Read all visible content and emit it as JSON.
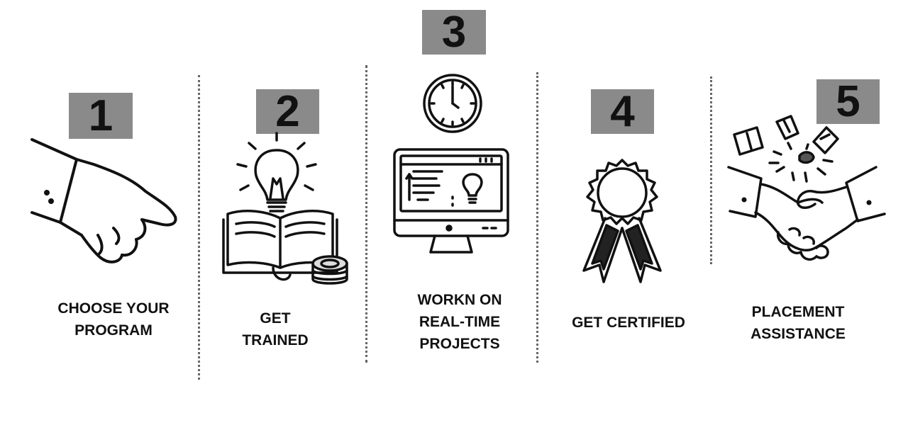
{
  "steps": [
    {
      "number": "1",
      "label_lines": [
        "CHOOSE YOUR",
        "PROGRAM"
      ],
      "icon": "pointing-hand-icon"
    },
    {
      "number": "2",
      "label_lines": [
        "GET",
        "TRAINED"
      ],
      "icon": "book-lightbulb-icon"
    },
    {
      "number": "3",
      "label_lines": [
        "WORKN ON",
        "REAL-TIME",
        "PROJECTS"
      ],
      "icon": "monitor-clock-icon"
    },
    {
      "number": "4",
      "label_lines": [
        "GET CERTIFIED"
      ],
      "icon": "award-ribbon-icon"
    },
    {
      "number": "5",
      "label_lines": [
        "PLACEMENT",
        "ASSISTANCE"
      ],
      "icon": "handshake-icon"
    }
  ],
  "colors": {
    "badge": "#8a8a8a",
    "text": "#111111",
    "divider": "#666666",
    "background": "#ffffff"
  }
}
